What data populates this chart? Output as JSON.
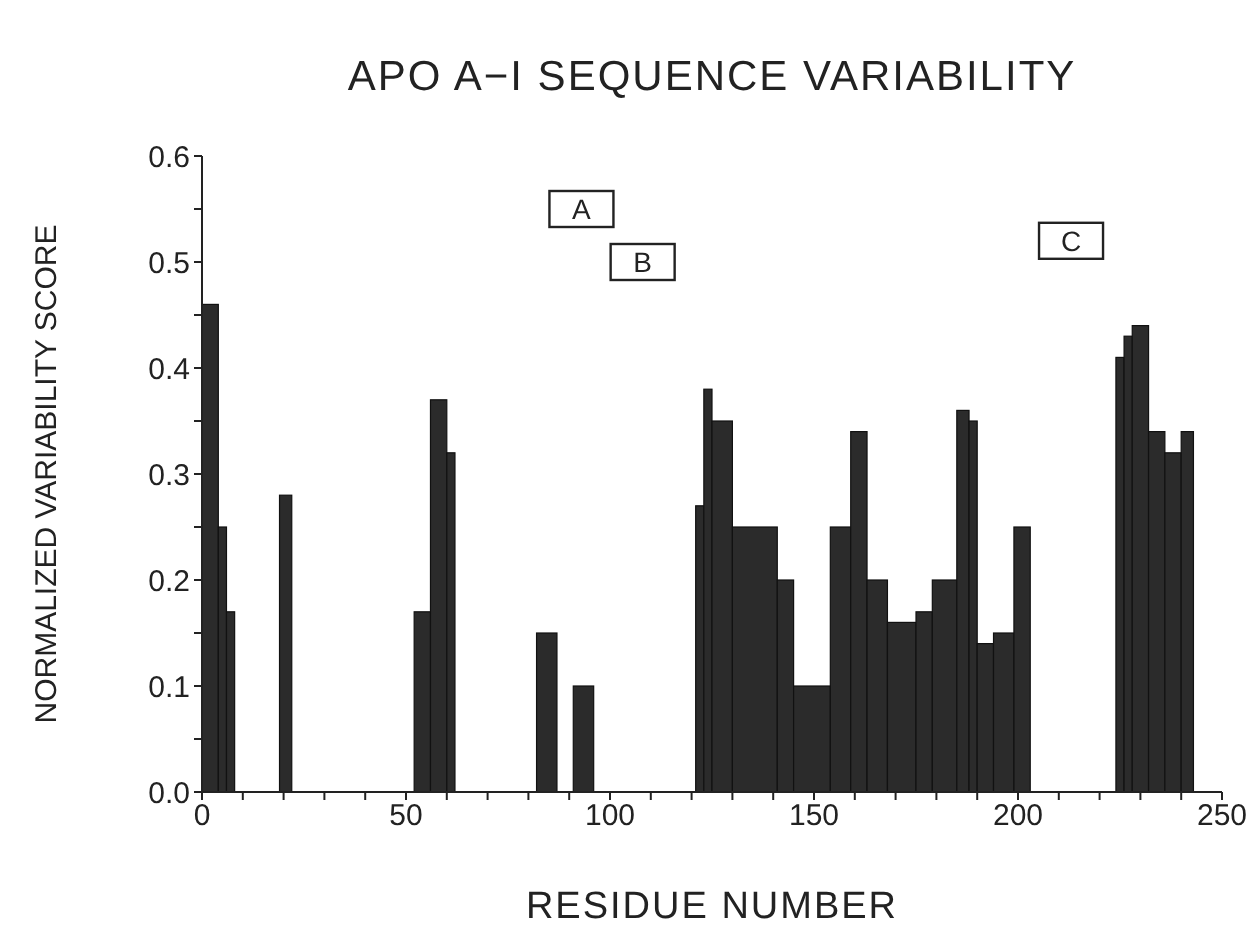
{
  "chart_data": {
    "type": "histogram",
    "title": "APO A−I SEQUENCE VARIABILITY",
    "xlabel": "RESIDUE NUMBER",
    "ylabel": "NORMALIZED VARIABILITY SCORE",
    "bins": [
      0,
      4,
      6,
      8,
      19,
      22,
      52,
      56,
      60,
      62,
      82,
      87,
      91,
      96,
      121,
      123,
      125,
      130,
      141,
      145,
      154,
      159,
      163,
      168,
      175,
      179,
      185,
      188,
      190,
      194,
      199,
      203,
      224,
      226,
      228,
      232,
      236,
      240,
      243
    ],
    "values": [
      0.46,
      0.25,
      0.17,
      0,
      0.28,
      0,
      0.17,
      0.37,
      0.32,
      0,
      0.15,
      0,
      0.1,
      0,
      0.27,
      0.38,
      0.35,
      0.25,
      0.2,
      0.1,
      0.25,
      0.34,
      0.2,
      0.16,
      0.17,
      0.2,
      0.36,
      0.35,
      0.14,
      0.15,
      0.25,
      0,
      0.41,
      0.43,
      0.44,
      0.34,
      0.32,
      0.34
    ],
    "color": "#2b2b2b",
    "xlim": [
      0,
      250
    ],
    "xticks": [
      0,
      {
        "value": 10,
        "label": null
      },
      {
        "value": 20,
        "label": null
      },
      {
        "value": 30,
        "label": null
      },
      {
        "value": 40,
        "label": null
      },
      50,
      {
        "value": 60,
        "label": null
      },
      {
        "value": 70,
        "label": null
      },
      {
        "value": 80,
        "label": null
      },
      {
        "value": 90,
        "label": null
      },
      100,
      {
        "value": 110,
        "label": null
      },
      {
        "value": 120,
        "label": null
      },
      {
        "value": 130,
        "label": null
      },
      {
        "value": 140,
        "label": null
      },
      150,
      {
        "value": 160,
        "label": null
      },
      {
        "value": 170,
        "label": null
      },
      {
        "value": 180,
        "label": null
      },
      {
        "value": 190,
        "label": null
      },
      200,
      {
        "value": 210,
        "label": null
      },
      {
        "value": 220,
        "label": null
      },
      {
        "value": 230,
        "label": null
      },
      {
        "value": 240,
        "label": null
      },
      250
    ],
    "ylim": [
      0,
      0.6
    ],
    "yticks": [
      {
        "value": 0,
        "label": "0.0"
      },
      {
        "value": 0.05,
        "label": null
      },
      {
        "value": 0.1,
        "label": "0.1"
      },
      {
        "value": 0.15,
        "label": null
      },
      {
        "value": 0.2,
        "label": "0.2"
      },
      {
        "value": 0.25,
        "label": null
      },
      {
        "value": 0.3,
        "label": "0.3"
      },
      {
        "value": 0.35,
        "label": null
      },
      {
        "value": 0.4,
        "label": "0.4"
      },
      {
        "value": 0.45,
        "label": null
      },
      {
        "value": 0.5,
        "label": "0.5"
      },
      {
        "value": 0.55,
        "label": null
      },
      {
        "value": 0.6,
        "label": "0.6"
      }
    ],
    "annotations": [
      {
        "text": "A",
        "x": 93,
        "y": 0.55
      },
      {
        "text": "B",
        "x": 108,
        "y": 0.5
      },
      {
        "text": "C",
        "x": 213,
        "y": 0.52
      }
    ]
  }
}
